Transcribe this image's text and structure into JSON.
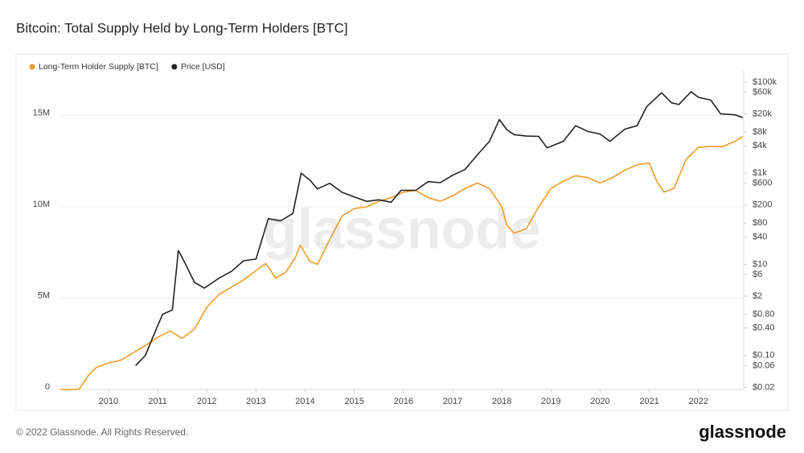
{
  "chart_data": {
    "type": "line",
    "title": "Bitcoin: Total Supply Held by Long-Term Holders [BTC]",
    "watermark": "glassnode",
    "footer": "© 2022 Glassnode. All Rights Reserved.",
    "logo": "glassnode",
    "xlim": [
      2009.02,
      2022.92
    ],
    "xticks": [
      2010,
      2011,
      2012,
      2013,
      2014,
      2015,
      2016,
      2017,
      2018,
      2019,
      2020,
      2021,
      2022
    ],
    "ylim": [
      0,
      17500000
    ],
    "yticks": [
      0,
      {
        "value": 5000000,
        "label": "5M"
      },
      {
        "value": 10000000,
        "label": "10M"
      },
      {
        "value": 15000000,
        "label": "15M"
      }
    ],
    "y2lim": [
      0.018,
      185000
    ],
    "y2log": true,
    "y2ticks": [
      {
        "value": 100000,
        "label": "$100k"
      },
      {
        "value": 60000,
        "label": "$60k"
      },
      {
        "value": 20000,
        "label": "$20k"
      },
      {
        "value": 8000,
        "label": "$8k"
      },
      {
        "value": 4000,
        "label": "$4k"
      },
      {
        "value": 1000,
        "label": "$1k"
      },
      {
        "value": 600,
        "label": "$600"
      },
      {
        "value": 200,
        "label": "$200"
      },
      {
        "value": 80,
        "label": "$80"
      },
      {
        "value": 40,
        "label": "$40"
      },
      {
        "value": 10,
        "label": "$10"
      },
      {
        "value": 6,
        "label": "$6"
      },
      {
        "value": 2,
        "label": "$2"
      },
      {
        "value": 0.8,
        "label": "$0.80"
      },
      {
        "value": 0.4,
        "label": "$0.40"
      },
      {
        "value": 0.1,
        "label": "$0.10"
      },
      {
        "value": 0.06,
        "label": "$0.06"
      },
      {
        "value": 0.02,
        "label": "$0.02"
      }
    ],
    "grid": true,
    "legend": "top-left",
    "series": [
      {
        "name": "Long-Term Holder Supply [BTC]",
        "color": "#f09a28",
        "x": [
          2009.02,
          2009.4,
          2009.6,
          2009.75,
          2010.0,
          2010.25,
          2010.5,
          2010.75,
          2011.0,
          2011.25,
          2011.5,
          2011.75,
          2012.0,
          2012.25,
          2012.5,
          2012.75,
          2013.0,
          2013.2,
          2013.4,
          2013.6,
          2013.8,
          2013.9,
          2014.1,
          2014.25,
          2014.5,
          2014.75,
          2015.0,
          2015.25,
          2015.5,
          2015.75,
          2016.0,
          2016.25,
          2016.5,
          2016.75,
          2017.0,
          2017.25,
          2017.5,
          2017.75,
          2018.0,
          2018.1,
          2018.25,
          2018.5,
          2018.75,
          2019.0,
          2019.25,
          2019.5,
          2019.75,
          2020.0,
          2020.25,
          2020.5,
          2020.75,
          2021.0,
          2021.15,
          2021.3,
          2021.5,
          2021.75,
          2022.0,
          2022.25,
          2022.5,
          2022.75,
          2022.9
        ],
        "values": [
          0,
          0,
          800000,
          1200000,
          1450000,
          1600000,
          2000000,
          2400000,
          2850000,
          3200000,
          2800000,
          3300000,
          4500000,
          5200000,
          5600000,
          6000000,
          6500000,
          6900000,
          6100000,
          6400000,
          7200000,
          7900000,
          7000000,
          6850000,
          8200000,
          9500000,
          9900000,
          10000000,
          10300000,
          10500000,
          10800000,
          10900000,
          10500000,
          10300000,
          10600000,
          11000000,
          11300000,
          11000000,
          10000000,
          9000000,
          8550000,
          8800000,
          10000000,
          11000000,
          11400000,
          11700000,
          11600000,
          11300000,
          11600000,
          12000000,
          12300000,
          12400000,
          11400000,
          10800000,
          11000000,
          12600000,
          13250000,
          13300000,
          13300000,
          13600000,
          13850000
        ]
      },
      {
        "name": "Price [USD]",
        "color": "#222222",
        "axis": "y2",
        "x": [
          2010.55,
          2010.75,
          2010.9,
          2011.1,
          2011.3,
          2011.42,
          2011.5,
          2011.75,
          2011.95,
          2012.25,
          2012.5,
          2012.75,
          2013.0,
          2013.25,
          2013.5,
          2013.75,
          2013.92,
          2014.1,
          2014.25,
          2014.5,
          2014.75,
          2015.0,
          2015.25,
          2015.5,
          2015.75,
          2015.95,
          2016.25,
          2016.5,
          2016.75,
          2017.0,
          2017.25,
          2017.5,
          2017.75,
          2017.95,
          2018.1,
          2018.25,
          2018.5,
          2018.75,
          2018.92,
          2019.25,
          2019.5,
          2019.75,
          2020.0,
          2020.2,
          2020.5,
          2020.75,
          2020.95,
          2021.25,
          2021.45,
          2021.6,
          2021.85,
          2022.0,
          2022.25,
          2022.45,
          2022.75,
          2022.9
        ],
        "values": [
          0.06,
          0.1,
          0.25,
          0.8,
          1,
          20,
          14,
          4,
          3,
          5,
          7,
          12,
          13,
          100,
          90,
          130,
          1000,
          700,
          450,
          600,
          380,
          300,
          240,
          260,
          230,
          420,
          420,
          650,
          620,
          900,
          1200,
          2500,
          5000,
          15000,
          9000,
          7000,
          6500,
          6400,
          3600,
          5000,
          11000,
          8200,
          7200,
          5000,
          9200,
          11000,
          29000,
          58000,
          35000,
          32000,
          61000,
          46000,
          40000,
          20000,
          19000,
          16500
        ]
      }
    ]
  }
}
